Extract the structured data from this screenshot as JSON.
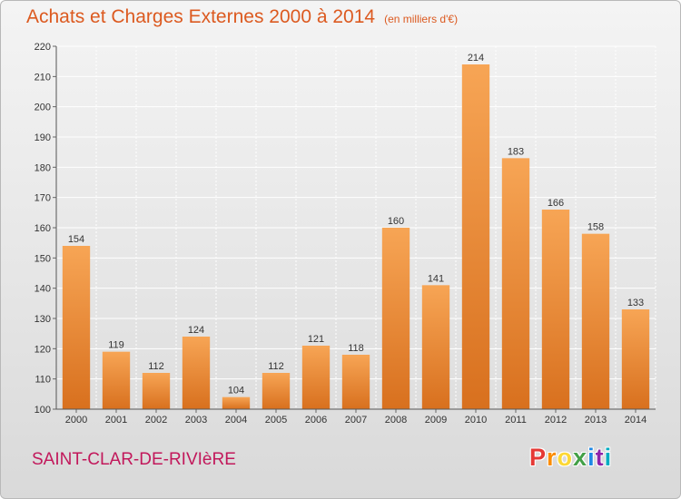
{
  "page": {
    "title": "Achats et Charges Externes 2000 à 2014",
    "subtitle": "(en milliers d'€)",
    "commune": "SAINT-CLAR-DE-RIVIèRE",
    "logo_text": "Proxiti"
  },
  "colors": {
    "title": "#dc5a20",
    "commune": "#c2185b",
    "bar_light": "#f7a555",
    "bar_dark": "#d8701e",
    "logo": [
      "#e53935",
      "#fb8c00",
      "#fdd835",
      "#43a047",
      "#1e88e5",
      "#8e24aa",
      "#00acc1"
    ]
  },
  "chart_data": {
    "type": "bar",
    "title": "Achats et Charges Externes 2000 à 2014",
    "subtitle": "(en milliers d'€)",
    "categories": [
      "2000",
      "2001",
      "2002",
      "2003",
      "2004",
      "2005",
      "2006",
      "2007",
      "2008",
      "2009",
      "2010",
      "2011",
      "2012",
      "2013",
      "2014"
    ],
    "values": [
      154,
      119,
      112,
      124,
      104,
      112,
      121,
      118,
      160,
      141,
      214,
      183,
      166,
      158,
      133
    ],
    "ylim": [
      100,
      220
    ],
    "yticks": [
      100,
      110,
      120,
      130,
      140,
      150,
      160,
      170,
      180,
      190,
      200,
      210,
      220
    ],
    "grid": true,
    "legend": "none"
  }
}
